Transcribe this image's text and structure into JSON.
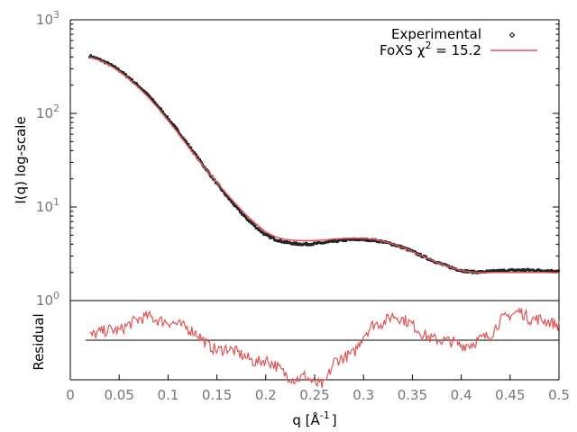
{
  "chart_data": [
    {
      "type": "scatter",
      "ylabel": "I(q) log-scale",
      "yscale": "log",
      "xlim": [
        0,
        0.5
      ],
      "ylim": [
        1,
        1000
      ],
      "y_ticks": [
        {
          "value": 1,
          "base": "10",
          "exp": "0"
        },
        {
          "value": 10,
          "base": "10",
          "exp": "1"
        },
        {
          "value": 100,
          "base": "10",
          "exp": "2"
        },
        {
          "value": 1000,
          "base": "10",
          "exp": "3"
        }
      ],
      "legend": {
        "placement": "top-right",
        "experimental": "Experimental",
        "fit_prefix": "FoXS χ",
        "fit_exp": "2",
        "fit_suffix": " = 15.2"
      },
      "series": [
        {
          "name": "Experimental",
          "kind": "points",
          "color": "#222222",
          "x": [
            0.02,
            0.03,
            0.04,
            0.05,
            0.06,
            0.07,
            0.08,
            0.09,
            0.1,
            0.11,
            0.12,
            0.13,
            0.14,
            0.15,
            0.16,
            0.17,
            0.18,
            0.19,
            0.2,
            0.21,
            0.22,
            0.23,
            0.24,
            0.25,
            0.26,
            0.27,
            0.28,
            0.29,
            0.3,
            0.31,
            0.32,
            0.33,
            0.34,
            0.35,
            0.36,
            0.37,
            0.38,
            0.39,
            0.4,
            0.41,
            0.42,
            0.43,
            0.44,
            0.45,
            0.46,
            0.47,
            0.48,
            0.49,
            0.5
          ],
          "y": [
            410,
            375,
            335,
            290,
            240,
            195,
            155,
            118,
            88,
            65,
            47,
            34,
            24.5,
            17.8,
            13.1,
            9.9,
            7.6,
            6.1,
            5.0,
            4.5,
            4.2,
            4.05,
            4.0,
            4.05,
            4.15,
            4.3,
            4.42,
            4.5,
            4.5,
            4.42,
            4.25,
            4.0,
            3.7,
            3.35,
            3.0,
            2.7,
            2.45,
            2.25,
            2.1,
            2.03,
            2.02,
            2.05,
            2.08,
            2.1,
            2.12,
            2.12,
            2.1,
            2.08,
            2.07
          ]
        },
        {
          "name": "FoXS",
          "kind": "line",
          "color": "#e05555",
          "x": [
            0.02,
            0.03,
            0.04,
            0.05,
            0.06,
            0.07,
            0.08,
            0.09,
            0.1,
            0.11,
            0.12,
            0.13,
            0.14,
            0.15,
            0.16,
            0.17,
            0.18,
            0.19,
            0.2,
            0.21,
            0.22,
            0.23,
            0.24,
            0.25,
            0.26,
            0.27,
            0.28,
            0.29,
            0.3,
            0.31,
            0.32,
            0.33,
            0.34,
            0.35,
            0.36,
            0.37,
            0.38,
            0.39,
            0.4,
            0.41,
            0.42,
            0.43,
            0.44,
            0.45,
            0.46,
            0.47,
            0.48,
            0.49,
            0.5
          ],
          "y": [
            400,
            368,
            328,
            282,
            233,
            188,
            148,
            113,
            84,
            62,
            45,
            33,
            24.5,
            18.3,
            13.8,
            10.6,
            8.2,
            6.6,
            5.4,
            4.8,
            4.5,
            4.4,
            4.35,
            4.38,
            4.45,
            4.55,
            4.62,
            4.65,
            4.62,
            4.52,
            4.3,
            4.02,
            3.7,
            3.35,
            3.0,
            2.7,
            2.45,
            2.25,
            2.1,
            2.02,
            1.99,
            1.99,
            2.0,
            2.0,
            2.0,
            2.0,
            2.0,
            1.99,
            1.98
          ]
        }
      ]
    },
    {
      "type": "line",
      "xlabel_main": "q [Å",
      "xlabel_exp": "-1",
      "xlabel_end": "]",
      "ylabel": "Residual",
      "xlim": [
        0,
        0.5
      ],
      "ylim": [
        -3,
        3
      ],
      "baseline": 0,
      "x_ticks": [
        "0",
        "0.05",
        "0.1",
        "0.15",
        "0.2",
        "0.25",
        "0.3",
        "0.35",
        "0.4",
        "0.45",
        "0.5"
      ],
      "x_tick_values": [
        0,
        0.05,
        0.1,
        0.15,
        0.2,
        0.25,
        0.3,
        0.35,
        0.4,
        0.45,
        0.5
      ],
      "series": [
        {
          "name": "Residual",
          "color": "#e05555",
          "x": [
            0.02,
            0.03,
            0.04,
            0.05,
            0.06,
            0.07,
            0.08,
            0.09,
            0.1,
            0.11,
            0.12,
            0.13,
            0.14,
            0.15,
            0.16,
            0.17,
            0.18,
            0.19,
            0.2,
            0.21,
            0.22,
            0.23,
            0.24,
            0.25,
            0.26,
            0.27,
            0.28,
            0.29,
            0.3,
            0.31,
            0.32,
            0.33,
            0.34,
            0.35,
            0.36,
            0.37,
            0.38,
            0.39,
            0.4,
            0.41,
            0.42,
            0.43,
            0.44,
            0.45,
            0.46,
            0.47,
            0.48,
            0.49,
            0.5
          ],
          "y": [
            0.3,
            0.6,
            0.8,
            0.7,
            1.2,
            1.6,
            1.8,
            1.5,
            1.4,
            1.2,
            0.9,
            0.5,
            -0.3,
            -0.8,
            -0.6,
            -0.9,
            -1.3,
            -1.7,
            -1.5,
            -1.9,
            -2.6,
            -3.0,
            -2.7,
            -3.3,
            -3.4,
            -1.6,
            -1.3,
            -1.0,
            0.4,
            1.2,
            1.3,
            1.9,
            1.6,
            1.2,
            0.5,
            0.1,
            0.0,
            -0.1,
            -0.4,
            -0.3,
            0.1,
            0.4,
            1.5,
            1.9,
            2.2,
            1.6,
            1.6,
            1.4,
            1.1
          ]
        }
      ]
    }
  ]
}
